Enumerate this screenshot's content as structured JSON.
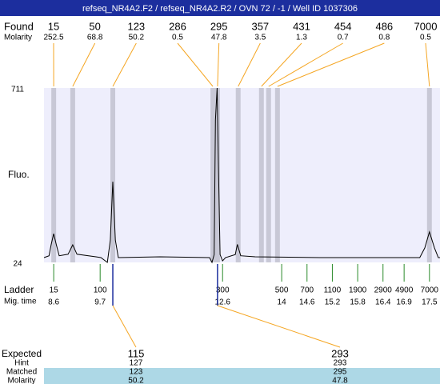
{
  "header": {
    "title": "refseq_NR4A2.F2 / refseq_NR4A2.R2 / OVN 72 / -1 / Well ID 1037306"
  },
  "found": {
    "label": "Found",
    "molarity_label": "Molarity",
    "sizes": [
      15,
      50,
      123,
      286,
      295,
      357,
      431,
      454,
      486,
      7000
    ],
    "molarity": [
      252.5,
      68.8,
      50.2,
      0.5,
      47.8,
      3.5,
      1.3,
      0.7,
      0.8,
      0.5
    ],
    "times": [
      8.6,
      9.05,
      10.0,
      12.37,
      12.48,
      12.97,
      13.52,
      13.69,
      13.9,
      17.5
    ]
  },
  "chart_data": {
    "type": "line",
    "ylabel": "Fluo.",
    "color": "#000000",
    "background": "#eeeefc",
    "band_color": "#c8c8d6",
    "xlim": [
      8.37,
      17.75
    ],
    "ylim": [
      24,
      711
    ],
    "yticks": [
      24,
      711
    ],
    "x": [
      8.37,
      8.49,
      8.54,
      8.6,
      8.66,
      8.73,
      8.94,
      9.05,
      9.15,
      9.6,
      9.72,
      9.87,
      9.94,
      10.0,
      10.06,
      10.13,
      11.12,
      12.29,
      12.35,
      12.4,
      12.43,
      12.47,
      12.5,
      12.54,
      12.6,
      12.67,
      12.9,
      12.95,
      13.03,
      13.37,
      14.9,
      17.27,
      17.39,
      17.5,
      17.62,
      17.71,
      17.75
    ],
    "values": [
      43,
      50,
      95,
      137,
      95,
      50,
      56,
      93,
      56,
      46,
      43,
      24,
      112,
      342,
      112,
      43,
      46,
      43,
      24,
      55,
      585,
      711,
      428,
      55,
      30,
      43,
      55,
      95,
      50,
      46,
      43,
      43,
      81,
      144,
      81,
      43,
      43
    ]
  },
  "ladder": {
    "label": "Ladder",
    "time_label": "Mig. time",
    "sizes": [
      15,
      100,
      300,
      500,
      700,
      1100,
      1900,
      2900,
      4900,
      7000
    ],
    "times": [
      8.6,
      9.7,
      12.6,
      14,
      14.6,
      15.2,
      15.8,
      16.4,
      16.9,
      17.5
    ]
  },
  "expected": {
    "label": "Expected",
    "hint_label": "Hint",
    "matched_label": "Matched",
    "molarity_label": "Molarity",
    "columns": [
      {
        "expected": 115,
        "hint": 127,
        "matched": 123,
        "molarity": 50.2
      },
      {
        "expected": 293,
        "hint": 293,
        "matched": 295,
        "molarity": 47.8
      }
    ]
  }
}
